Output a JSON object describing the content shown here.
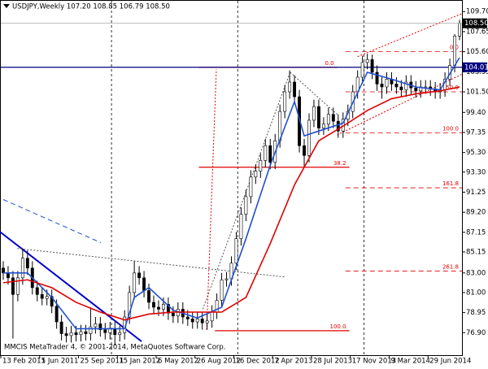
{
  "chart_data": {
    "type": "candlestick",
    "title": "USDJPY,Weekly  107.20 108.85 106.79 108.50",
    "footer": "MMCIS MetaTrader 4, © 2001-2014, MetaQuotes Software Corp.",
    "open": [
      83.5,
      83.0,
      82.5,
      80.8,
      82.5,
      84.5,
      83.5,
      81.5,
      80.8,
      80.4,
      80.6,
      79.6,
      78.0,
      76.8,
      76.6,
      76.9,
      76.7,
      77.0,
      76.8,
      77.5,
      77.8,
      77.2,
      76.9,
      77.3,
      76.7,
      76.9,
      78.5,
      81.0,
      83.0,
      82.5,
      81.2,
      80.0,
      79.5,
      79.3,
      79.8,
      78.9,
      78.6,
      79.3,
      78.5,
      78.3,
      78.0,
      78.3,
      77.9,
      78.1,
      79.0,
      80.2,
      82.3,
      82.4,
      84.0,
      86.5,
      89.0,
      90.8,
      92.8,
      93.4,
      94.5,
      96.0,
      94.3,
      96.5,
      99.5,
      101.5,
      102.5,
      101.0,
      96.0,
      95.0,
      98.6,
      100.0,
      97.8,
      98.2,
      99.2,
      98.5,
      97.5,
      98.7,
      99.5,
      101.5,
      103.0,
      104.5,
      104.8,
      103.5,
      102.3,
      102.0,
      102.8,
      102.3,
      102.0,
      101.7,
      102.5,
      101.9,
      101.6,
      102.0,
      102.0,
      101.8,
      101.5,
      101.7,
      102.8,
      104.2,
      107.2
    ],
    "high": [
      84.2,
      83.7,
      83.2,
      83.2,
      85.5,
      85.3,
      84.2,
      82.2,
      81.5,
      81.3,
      81.3,
      80.3,
      78.7,
      77.5,
      77.6,
      77.6,
      77.7,
      77.7,
      79.5,
      78.5,
      78.5,
      77.9,
      78.0,
      78.0,
      77.6,
      79.2,
      81.7,
      84.2,
      83.7,
      83.2,
      81.9,
      80.7,
      80.2,
      80.5,
      80.5,
      79.6,
      80.0,
      80.0,
      79.2,
      79.0,
      79.0,
      79.0,
      78.8,
      79.7,
      80.9,
      83.0,
      83.1,
      84.7,
      87.2,
      89.7,
      91.5,
      93.5,
      94.1,
      95.2,
      96.7,
      96.7,
      97.2,
      100.2,
      102.2,
      103.7,
      103.2,
      101.7,
      96.7,
      99.3,
      100.7,
      100.7,
      98.9,
      99.9,
      99.9,
      99.2,
      99.4,
      100.2,
      102.2,
      103.7,
      105.2,
      105.4,
      105.3,
      104.2,
      103.0,
      103.5,
      103.5,
      103.0,
      102.7,
      103.2,
      103.2,
      102.6,
      102.7,
      102.7,
      102.7,
      102.5,
      102.4,
      103.5,
      104.9,
      107.4,
      108.85
    ],
    "low": [
      82.3,
      81.8,
      76.3,
      80.1,
      81.8,
      82.8,
      80.8,
      80.1,
      79.7,
      79.7,
      78.9,
      77.3,
      76.1,
      75.9,
      75.9,
      76.0,
      76.0,
      76.1,
      76.1,
      76.8,
      76.5,
      76.2,
      76.2,
      75.6,
      76.0,
      76.2,
      77.8,
      80.3,
      81.8,
      80.5,
      79.3,
      78.8,
      78.6,
      78.6,
      78.2,
      77.9,
      77.9,
      77.8,
      77.6,
      77.3,
      77.3,
      77.2,
      77.2,
      77.4,
      78.3,
      79.5,
      81.6,
      81.7,
      83.3,
      85.8,
      88.3,
      90.1,
      92.1,
      92.7,
      93.8,
      93.6,
      93.6,
      95.8,
      98.8,
      100.8,
      100.3,
      95.3,
      93.8,
      94.3,
      97.9,
      97.1,
      97.1,
      97.5,
      97.8,
      96.8,
      96.8,
      98.0,
      98.8,
      100.8,
      102.3,
      103.8,
      102.8,
      101.6,
      100.8,
      101.3,
      101.6,
      101.3,
      101.0,
      101.0,
      101.2,
      100.9,
      100.9,
      101.3,
      101.1,
      100.8,
      100.8,
      101.0,
      102.1,
      103.5,
      106.79
    ],
    "close": [
      83.0,
      82.5,
      80.8,
      82.5,
      84.5,
      83.5,
      81.5,
      80.8,
      80.4,
      80.6,
      79.6,
      78.0,
      76.8,
      76.6,
      76.9,
      76.7,
      77.0,
      76.8,
      77.5,
      77.8,
      77.2,
      76.9,
      77.3,
      76.7,
      76.9,
      78.5,
      81.0,
      83.0,
      82.5,
      81.2,
      80.0,
      79.5,
      79.3,
      79.8,
      78.9,
      78.6,
      79.3,
      78.5,
      78.3,
      78.0,
      78.3,
      77.9,
      78.1,
      79.0,
      80.2,
      82.3,
      82.4,
      84.0,
      86.5,
      89.0,
      90.8,
      92.8,
      93.4,
      94.5,
      96.0,
      94.3,
      96.5,
      99.5,
      101.5,
      102.5,
      101.0,
      96.0,
      95.0,
      98.6,
      100.0,
      97.8,
      98.2,
      99.2,
      98.5,
      97.5,
      98.7,
      99.5,
      101.5,
      103.0,
      104.5,
      104.8,
      103.5,
      102.3,
      102.0,
      102.8,
      102.3,
      102.0,
      101.7,
      102.5,
      101.9,
      101.6,
      102.0,
      102.0,
      101.8,
      101.5,
      101.7,
      102.8,
      104.2,
      107.2,
      108.5
    ],
    "bull_color": "#ffffff",
    "bear_color": "#000000",
    "wick_color": "#000000",
    "xlim": [
      -0.5,
      94.5
    ],
    "xticks": [
      {
        "value": 0,
        "label": "13 Feb 2011"
      },
      {
        "value": 8,
        "label": "5 Jun 2011"
      },
      {
        "value": 16,
        "label": "25 Sep 2011"
      },
      {
        "value": 24,
        "label": "15 Jan 2012"
      },
      {
        "value": 32,
        "label": "6 May 2012"
      },
      {
        "value": 40,
        "label": "26 Aug 2012"
      },
      {
        "value": 48,
        "label": "16 Dec 2012"
      },
      {
        "value": 56,
        "label": "7 Apr 2013"
      },
      {
        "value": 64,
        "label": "28 Jul 2013"
      },
      {
        "value": 72,
        "label": "17 Nov 2013"
      },
      {
        "value": 80,
        "label": "9 Mar 2014"
      },
      {
        "value": 88,
        "label": "29 Jun 2014"
      }
    ],
    "ylim": [
      74.6,
      110.8
    ],
    "yticks": [
      {
        "value": 109.7,
        "label": "109.70"
      },
      {
        "value": 107.65,
        "label": "107.65"
      },
      {
        "value": 105.6,
        "label": "105.60"
      },
      {
        "value": 103.55,
        "label": "103.55"
      },
      {
        "value": 101.5,
        "label": "101.50"
      },
      {
        "value": 99.4,
        "label": "99.40"
      },
      {
        "value": 97.35,
        "label": "97.35"
      },
      {
        "value": 95.3,
        "label": "95.30"
      },
      {
        "value": 93.3,
        "label": "93.30"
      },
      {
        "value": 91.25,
        "label": "91.25"
      },
      {
        "value": 89.2,
        "label": "89.20"
      },
      {
        "value": 87.15,
        "label": "87.15"
      },
      {
        "value": 85.15,
        "label": "85.15"
      },
      {
        "value": 83.0,
        "label": "83.00"
      },
      {
        "value": 81.0,
        "label": "81.00"
      },
      {
        "value": 78.95,
        "label": "78.95"
      },
      {
        "value": 76.9,
        "label": "76.90"
      }
    ],
    "overlays": [
      {
        "color": "#2050d0",
        "x": [
          0,
          5,
          10,
          15,
          20,
          25,
          27,
          30,
          35,
          40,
          45,
          50,
          55,
          60,
          62,
          65,
          70,
          75,
          80,
          85,
          90,
          94
        ],
        "values": [
          83.0,
          83.0,
          80.5,
          77.3,
          77.3,
          77.3,
          80.5,
          81.5,
          79.2,
          78.4,
          79.5,
          86.5,
          94.0,
          100.5,
          97.0,
          97.5,
          98.3,
          103.5,
          102.8,
          102.0,
          101.7,
          105.0
        ]
      },
      {
        "color": "#e00000",
        "x": [
          0,
          5,
          10,
          15,
          20,
          25,
          30,
          35,
          40,
          45,
          50,
          55,
          60,
          65,
          70,
          75,
          80,
          85,
          90,
          94
        ],
        "values": [
          82.0,
          82.3,
          81.5,
          80.0,
          79.0,
          78.2,
          78.8,
          79.0,
          79.0,
          79.0,
          80.5,
          86.0,
          92.0,
          96.5,
          98.0,
          99.6,
          100.8,
          101.3,
          101.6,
          102.0
        ]
      }
    ],
    "hlines": [
      {
        "value": 104.01,
        "label": "104.01",
        "color": "#000080"
      }
    ],
    "last_price": {
      "value": 108.5,
      "label": "108.50"
    },
    "fib_levels": [
      {
        "label": "0.0",
        "value": 104.0,
        "x": [
          40.3,
          68.8
        ],
        "style": "solid"
      },
      {
        "label": "38.2",
        "value": 93.8,
        "x": [
          40.3,
          71.3
        ],
        "style": "solid"
      },
      {
        "label": "100.0",
        "value": 77.1,
        "x": [
          43.6,
          71.3
        ],
        "style": "solid"
      },
      {
        "label": "0.0",
        "value": 105.6,
        "x": [
          70.5,
          94.5
        ],
        "style": "dashed"
      },
      {
        "label": "50.0",
        "value": 101.5,
        "x": [
          70.5,
          94.5
        ],
        "style": "dashed"
      },
      {
        "label": "100.0",
        "value": 97.3,
        "x": [
          70.5,
          94.5
        ],
        "style": "dashed"
      },
      {
        "label": "161.8",
        "value": 91.7,
        "x": [
          70.5,
          94.5
        ],
        "style": "dashed"
      },
      {
        "label": "261.8",
        "value": 83.2,
        "x": [
          70.5,
          94.5
        ],
        "style": "dashed"
      }
    ],
    "fib_color": "#e00000",
    "trendlines": [
      {
        "x": [
          -0.8,
          28.5
        ],
        "y": [
          87.25,
          76.0
        ],
        "color": "#0000cc",
        "style": "solid"
      },
      {
        "x": [
          0,
          20.1
        ],
        "y": [
          90.5,
          86.1
        ],
        "color": "#2050d0",
        "style": "dashed"
      },
      {
        "x": [
          2.9,
          57.9
        ],
        "y": [
          85.5,
          82.6
        ],
        "color": "#555555",
        "style": "dotted"
      },
      {
        "x": [
          41.1,
          59.1
        ],
        "y": [
          79.3,
          103.5
        ],
        "color": "#555555",
        "style": "dotted"
      },
      {
        "x": [
          59.1,
          68.8
        ],
        "y": [
          103.5,
          99.2
        ],
        "color": "#555555",
        "style": "dotted"
      },
      {
        "x": [
          41.9,
          43.9
        ],
        "y": [
          77.2,
          103.8
        ],
        "color": "#e00000",
        "style": "dotted"
      },
      {
        "x": [
          68.8,
          94.5
        ],
        "y": [
          97.1,
          103.3
        ],
        "color": "#e00000",
        "style": "dotted"
      },
      {
        "x": [
          73.0,
          94.5
        ],
        "y": [
          105.1,
          109.5
        ],
        "color": "#e00000",
        "style": "dotted"
      }
    ],
    "separators": [
      22.3,
      48.3,
      74.3
    ]
  }
}
